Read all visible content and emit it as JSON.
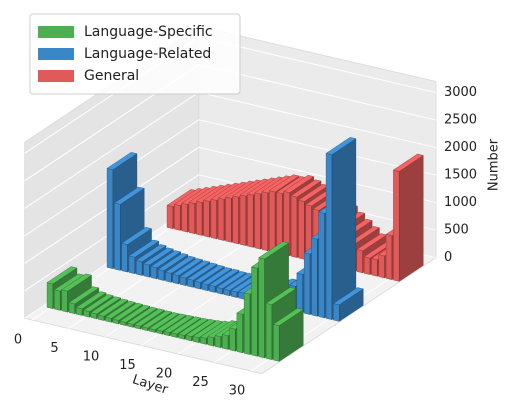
{
  "chart_data": {
    "type": "bar3d",
    "xlabel": "Layer",
    "ylabel": "Number",
    "xlim": [
      -1,
      31.5
    ],
    "xticks": [
      0,
      5,
      10,
      15,
      20,
      25,
      30
    ],
    "ylim": [
      0,
      3200
    ],
    "yticks": [
      0,
      500,
      1000,
      1500,
      2000,
      2500,
      3000
    ],
    "grid": true,
    "legend": "upper left",
    "series": [
      {
        "name": "Language-Specific",
        "color": "#4caf50",
        "values": [
          450,
          350,
          380,
          180,
          120,
          100,
          90,
          80,
          70,
          65,
          60,
          55,
          55,
          50,
          50,
          55,
          60,
          65,
          70,
          80,
          90,
          110,
          150,
          200,
          250,
          400,
          700,
          1100,
          1600,
          1800,
          1000,
          650
        ]
      },
      {
        "name": "Language-Related",
        "color": "#3a87c8",
        "values": [
          1800,
          1200,
          500,
          300,
          250,
          220,
          200,
          180,
          160,
          150,
          140,
          130,
          120,
          110,
          110,
          100,
          100,
          100,
          110,
          120,
          130,
          150,
          180,
          220,
          300,
          450,
          700,
          1100,
          1400,
          1900,
          3000,
          300
        ]
      },
      {
        "name": "General",
        "color": "#e05a5a",
        "values": [
          400,
          450,
          500,
          550,
          600,
          650,
          700,
          750,
          800,
          850,
          900,
          950,
          1000,
          1050,
          1100,
          1100,
          1150,
          1100,
          1050,
          1000,
          950,
          900,
          800,
          700,
          600,
          500,
          400,
          300,
          300,
          400,
          800,
          2000
        ]
      }
    ]
  }
}
